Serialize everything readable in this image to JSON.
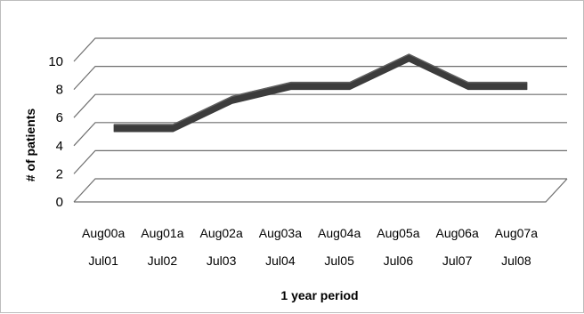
{
  "chart_data": {
    "type": "line",
    "style": "3d-ribbon",
    "categories": [
      [
        "Aug00a",
        "Jul01"
      ],
      [
        "Aug01a",
        "Jul02"
      ],
      [
        "Aug02a",
        "Jul03"
      ],
      [
        "Aug03a",
        "Jul04"
      ],
      [
        "Aug04a",
        "Jul05"
      ],
      [
        "Aug05a",
        "Jul06"
      ],
      [
        "Aug06a",
        "Jul07"
      ],
      [
        "Aug07a",
        "Jul08"
      ]
    ],
    "values": [
      5,
      5,
      7,
      8,
      8,
      10,
      8,
      8
    ],
    "xlabel": "1 year period",
    "ylabel": "# of patients",
    "yticks": [
      0,
      2,
      4,
      6,
      8,
      10
    ],
    "ylim": [
      0,
      10
    ],
    "grid": true,
    "legend": false,
    "colors": {
      "line": "#3c3c3c",
      "line_top": "#606060",
      "grid": "#6e6e6e"
    }
  }
}
